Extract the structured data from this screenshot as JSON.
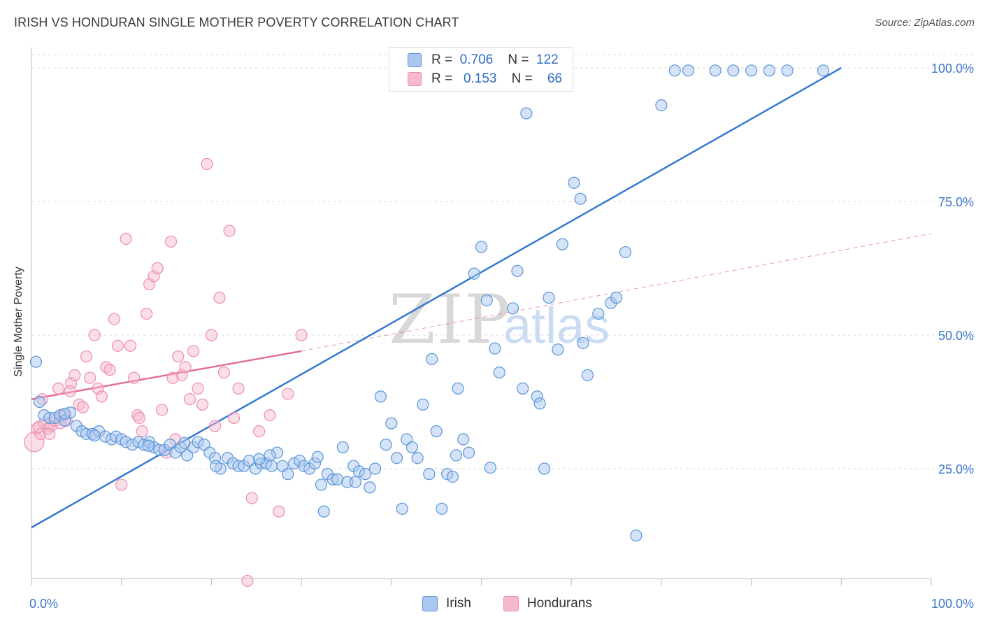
{
  "title": "IRISH VS HONDURAN SINGLE MOTHER POVERTY CORRELATION CHART",
  "source": "Source: ZipAtlas.com",
  "watermark": {
    "zip": "ZIP",
    "atlas": "atlas"
  },
  "legend": {
    "irish": {
      "r_label": "R =",
      "r_value": "0.706",
      "n_label": "N =",
      "n_value": "122"
    },
    "hondurans": {
      "r_label": "R =",
      "r_value": "0.153",
      "n_label": "N =",
      "n_value": "66"
    }
  },
  "bottom_legend": {
    "irish": "Irish",
    "hondurans": "Hondurans"
  },
  "colors": {
    "irish_fill": "#a9c8f0",
    "irish_stroke": "#5b95d8",
    "irish_line": "#2f74d0",
    "hondurans_fill": "#f6b8cb",
    "hondurans_stroke": "#ec8eac",
    "hondurans_line": "#e36994",
    "grid": "#dddddd",
    "tick_text": "#3b78c9"
  },
  "chart_data": {
    "type": "scatter",
    "title": "IRISH VS HONDURAN SINGLE MOTHER POVERTY CORRELATION CHART",
    "xlabel": "",
    "ylabel": "Single Mother Poverty",
    "xlim": [
      0,
      100
    ],
    "ylim": [
      0,
      102
    ],
    "x_ticks": [
      "0.0%",
      "100.0%"
    ],
    "y_ticks": [
      {
        "value": 25,
        "label": "25.0%"
      },
      {
        "value": 50,
        "label": "50.0%"
      },
      {
        "value": 75,
        "label": "75.0%"
      },
      {
        "value": 100,
        "label": "100.0%"
      }
    ],
    "grid": true,
    "legend_position": "top-center",
    "series": [
      {
        "name": "Irish",
        "r": 0.706,
        "n": 122,
        "trend": {
          "x": [
            0,
            90
          ],
          "y": [
            14,
            100
          ]
        },
        "points": [
          [
            0.5,
            45
          ],
          [
            0.9,
            37.5
          ],
          [
            1.4,
            35
          ],
          [
            2,
            34.5
          ],
          [
            2.6,
            34.5
          ],
          [
            3.2,
            35
          ],
          [
            3.7,
            34
          ],
          [
            4.3,
            35.5
          ],
          [
            5,
            33
          ],
          [
            5.6,
            32
          ],
          [
            6.1,
            31.5
          ],
          [
            6.8,
            31.5
          ],
          [
            7.5,
            32
          ],
          [
            8.2,
            31
          ],
          [
            8.9,
            30.5
          ],
          [
            9.4,
            31
          ],
          [
            10,
            30.5
          ],
          [
            10.5,
            30
          ],
          [
            11.2,
            29.5
          ],
          [
            11.9,
            30
          ],
          [
            12.5,
            29.5
          ],
          [
            13.1,
            30
          ],
          [
            13.6,
            29
          ],
          [
            14.2,
            28.5
          ],
          [
            14.8,
            28.5
          ],
          [
            15.4,
            29.5
          ],
          [
            16,
            28
          ],
          [
            16.6,
            29
          ],
          [
            17.3,
            27.5
          ],
          [
            18,
            29
          ],
          [
            18.5,
            30
          ],
          [
            19.2,
            29.5
          ],
          [
            19.8,
            28
          ],
          [
            20.4,
            27
          ],
          [
            21,
            25
          ],
          [
            21.8,
            27
          ],
          [
            22.4,
            26
          ],
          [
            23,
            25.5
          ],
          [
            23.6,
            25.5
          ],
          [
            24.2,
            26.5
          ],
          [
            24.9,
            25
          ],
          [
            25.5,
            26
          ],
          [
            26.1,
            26
          ],
          [
            26.7,
            25.5
          ],
          [
            27.3,
            28
          ],
          [
            27.9,
            25.5
          ],
          [
            28.5,
            24
          ],
          [
            29.2,
            26
          ],
          [
            29.8,
            26.5
          ],
          [
            30.3,
            25.5
          ],
          [
            30.9,
            25
          ],
          [
            31.5,
            26
          ],
          [
            32.2,
            22
          ],
          [
            32.9,
            24
          ],
          [
            33.5,
            23
          ],
          [
            34,
            23
          ],
          [
            34.6,
            29
          ],
          [
            35.1,
            22.5
          ],
          [
            35.8,
            25.5
          ],
          [
            36.4,
            24.5
          ],
          [
            37.1,
            24
          ],
          [
            37.6,
            21.5
          ],
          [
            38.2,
            25
          ],
          [
            38.8,
            38.5
          ],
          [
            39.4,
            29.5
          ],
          [
            40,
            33.5
          ],
          [
            40.6,
            27
          ],
          [
            41.2,
            17.5
          ],
          [
            41.7,
            30.5
          ],
          [
            42.3,
            29
          ],
          [
            42.9,
            27
          ],
          [
            43.5,
            37
          ],
          [
            44.5,
            45.5
          ],
          [
            45,
            32
          ],
          [
            45.6,
            17.5
          ],
          [
            46.2,
            24
          ],
          [
            46.8,
            23.5
          ],
          [
            47.4,
            40
          ],
          [
            48,
            30.5
          ],
          [
            48.6,
            28
          ],
          [
            49.2,
            61.5
          ],
          [
            50,
            66.5
          ],
          [
            50.6,
            56.5
          ],
          [
            51.5,
            47.5
          ],
          [
            52,
            43
          ],
          [
            53.5,
            55
          ],
          [
            54,
            62
          ],
          [
            54.6,
            40
          ],
          [
            55,
            91.5
          ],
          [
            56.2,
            38.5
          ],
          [
            57,
            25
          ],
          [
            57.5,
            57
          ],
          [
            59,
            67
          ],
          [
            60.3,
            78.5
          ],
          [
            61.3,
            48.5
          ],
          [
            61.8,
            42.5
          ],
          [
            63,
            54
          ],
          [
            64.4,
            56
          ],
          [
            66,
            65.5
          ],
          [
            61,
            75.5
          ],
          [
            67.2,
            12.5
          ],
          [
            70,
            93
          ],
          [
            71.5,
            99.5
          ],
          [
            73,
            99.5
          ],
          [
            76,
            99.5
          ],
          [
            78,
            99.5
          ],
          [
            80,
            99.5
          ],
          [
            82,
            99.5
          ],
          [
            84,
            99.5
          ],
          [
            88,
            99.5
          ],
          [
            20.5,
            25.5
          ],
          [
            32.5,
            17
          ],
          [
            36,
            22.5
          ],
          [
            44.2,
            24
          ],
          [
            51,
            25.2
          ],
          [
            56.5,
            37.2
          ],
          [
            58.5,
            47.3
          ],
          [
            47.2,
            27.5
          ],
          [
            7,
            31.2
          ],
          [
            13,
            29.3
          ],
          [
            26.5,
            27.5
          ],
          [
            17,
            29.8
          ],
          [
            3.7,
            35.3
          ],
          [
            31.8,
            27.2
          ],
          [
            25.3,
            26.8
          ],
          [
            65,
            57
          ]
        ]
      },
      {
        "name": "Hondurans",
        "r": 0.153,
        "n": 66,
        "trend": {
          "x": [
            0,
            30
          ],
          "y": [
            38,
            47
          ]
        },
        "trend_extended": {
          "x": [
            30,
            100
          ],
          "y": [
            47,
            69
          ]
        },
        "points": [
          [
            0.3,
            30
          ],
          [
            0.6,
            32.5
          ],
          [
            1,
            31.5
          ],
          [
            1.4,
            33.5
          ],
          [
            1.8,
            32.5
          ],
          [
            2.2,
            33
          ],
          [
            2.6,
            34
          ],
          [
            3,
            40
          ],
          [
            3.5,
            35
          ],
          [
            3.9,
            34
          ],
          [
            4.4,
            41
          ],
          [
            4.8,
            42.5
          ],
          [
            5.3,
            37
          ],
          [
            5.7,
            36.5
          ],
          [
            6.1,
            46
          ],
          [
            6.5,
            42
          ],
          [
            7,
            50
          ],
          [
            7.4,
            40
          ],
          [
            7.8,
            38.5
          ],
          [
            8.3,
            44
          ],
          [
            8.7,
            43.5
          ],
          [
            9.2,
            53
          ],
          [
            9.6,
            48
          ],
          [
            10,
            22
          ],
          [
            10.5,
            68
          ],
          [
            11,
            48
          ],
          [
            11.4,
            42
          ],
          [
            11.8,
            35
          ],
          [
            12.3,
            32
          ],
          [
            12.8,
            54
          ],
          [
            13.1,
            59.5
          ],
          [
            13.6,
            61
          ],
          [
            14,
            62.5
          ],
          [
            14.5,
            36
          ],
          [
            15,
            28
          ],
          [
            15.5,
            67.5
          ],
          [
            16,
            30.5
          ],
          [
            16.3,
            46
          ],
          [
            16.7,
            42.5
          ],
          [
            17.1,
            44
          ],
          [
            17.6,
            38
          ],
          [
            18,
            47
          ],
          [
            18.5,
            40
          ],
          [
            19,
            37
          ],
          [
            19.5,
            82
          ],
          [
            20,
            50
          ],
          [
            20.4,
            33
          ],
          [
            20.9,
            57
          ],
          [
            21.4,
            43
          ],
          [
            22,
            69.5
          ],
          [
            22.5,
            34.5
          ],
          [
            23,
            40
          ],
          [
            24,
            4
          ],
          [
            24.5,
            19.5
          ],
          [
            25.3,
            32
          ],
          [
            26.5,
            35
          ],
          [
            27.5,
            17
          ],
          [
            28.5,
            39
          ],
          [
            30,
            50
          ],
          [
            1.2,
            38
          ],
          [
            2,
            31.5
          ],
          [
            3.2,
            33.5
          ],
          [
            4.3,
            39.5
          ],
          [
            15.7,
            42
          ],
          [
            12,
            34.5
          ],
          [
            0.8,
            32.8
          ]
        ]
      }
    ]
  }
}
